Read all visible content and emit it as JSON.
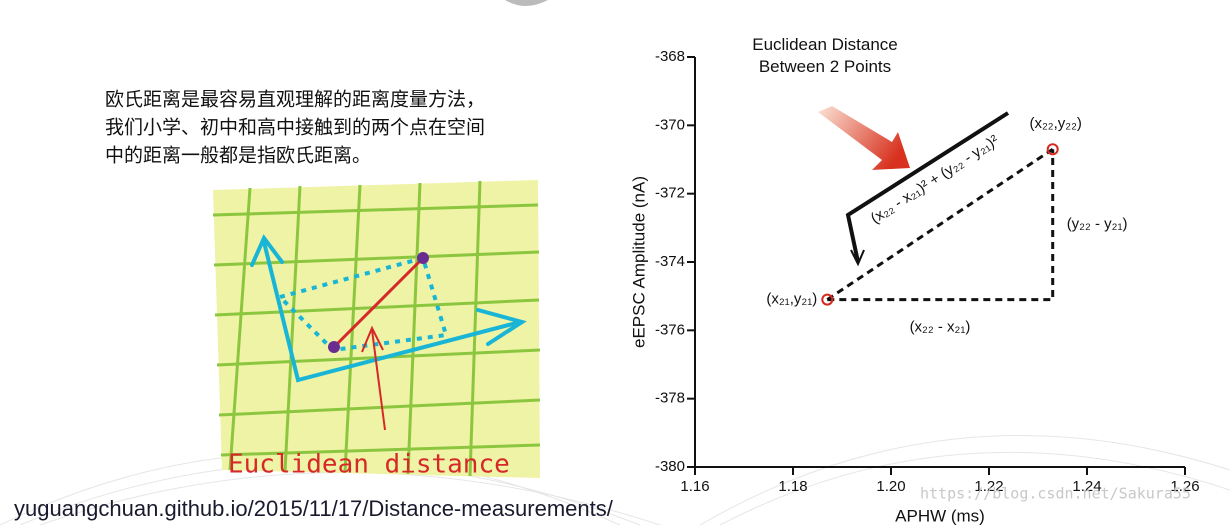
{
  "intro": {
    "lines": [
      "欧氏距离是最容易直观理解的距离度量方法，",
      "我们小学、初中和高中接触到的两个点在空间",
      "中的距离一般都是指欧氏距离。"
    ]
  },
  "illustration": {
    "caption": "Euclidean distance"
  },
  "source_url": "yuguangchuan.github.io/2015/11/17/Distance-measurements/",
  "watermark": "https://blog.csdn.net/Sakura55",
  "chart_data": {
    "type": "scatter",
    "title": "Euclidean Distance Between 2 Points",
    "x_label": "APHW (ms)",
    "y_label": "eEPSC Amplitude (nA)",
    "xlim": [
      1.16,
      1.26
    ],
    "xticks": [
      1.16,
      1.18,
      {
        "value": 1.2,
        "label": "1.20"
      },
      1.22,
      1.24,
      1.26
    ],
    "ylim": [
      -380,
      -368
    ],
    "yticks": [
      -380,
      -378,
      -376,
      -374,
      -372,
      -370,
      -368
    ],
    "x": [
      1.187,
      1.233
    ],
    "values": [
      -375.1,
      -370.7
    ],
    "color": "#d42a1e",
    "point_labels": [
      "(x₂₁,y₂₁)",
      "(x₂₂,y₂₂)"
    ],
    "annotations": {
      "dx": "(x₂₂ - x₂₁)",
      "dy": "(y₂₂ - y₂₁)",
      "formula": "(x₂₂ - x₂₁)² + (y₂₂ - y₂₁)²"
    }
  }
}
